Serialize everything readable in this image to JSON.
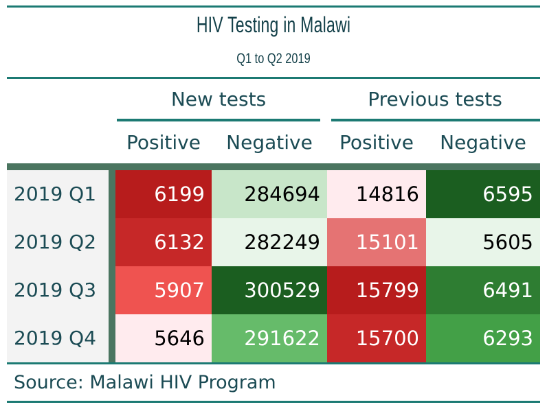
{
  "colors": {
    "rule": "#1c7a73",
    "header_band": "#4b7560",
    "stub_background": "#f3f3f3",
    "text": "#1b4b54",
    "positive_scale": [
      "#ffebee",
      "#e57373",
      "#f44336",
      "#d32f2f",
      "#b71c1c"
    ],
    "negative_scale": [
      "#e8f5e9",
      "#c8e6c9",
      "#66bb6a",
      "#43a047",
      "#2e7d32",
      "#1b5e20"
    ]
  },
  "chart_data": {
    "type": "table",
    "title": "HIV Testing in Malawi",
    "subtitle": "Q1 to Q2 2019",
    "column_groups": [
      {
        "label": "New tests",
        "columns": [
          "Positive",
          "Negative"
        ]
      },
      {
        "label": "Previous tests",
        "columns": [
          "Positive",
          "Negative"
        ]
      }
    ],
    "rows": [
      {
        "label": "2019 Q1",
        "values": [
          6199,
          284694,
          14816,
          6595
        ]
      },
      {
        "label": "2019 Q2",
        "values": [
          6132,
          282249,
          15101,
          5605
        ]
      },
      {
        "label": "2019 Q3",
        "values": [
          5907,
          300529,
          15799,
          6491
        ]
      },
      {
        "label": "2019 Q4",
        "values": [
          5646,
          291622,
          15700,
          6293
        ]
      }
    ],
    "cell_colors": [
      [
        {
          "bg": "#b71c1c",
          "fg": "#ffffff"
        },
        {
          "bg": "#c8e6c9",
          "fg": "#000000"
        },
        {
          "bg": "#ffebee",
          "fg": "#000000"
        },
        {
          "bg": "#1b5e20",
          "fg": "#ffffff"
        }
      ],
      [
        {
          "bg": "#c62828",
          "fg": "#ffffff"
        },
        {
          "bg": "#e8f5e9",
          "fg": "#000000"
        },
        {
          "bg": "#e57373",
          "fg": "#ffffff"
        },
        {
          "bg": "#e8f5e9",
          "fg": "#000000"
        }
      ],
      [
        {
          "bg": "#ef5350",
          "fg": "#ffffff"
        },
        {
          "bg": "#1b5e20",
          "fg": "#ffffff"
        },
        {
          "bg": "#b71c1c",
          "fg": "#ffffff"
        },
        {
          "bg": "#2e7d32",
          "fg": "#ffffff"
        }
      ],
      [
        {
          "bg": "#ffebee",
          "fg": "#000000"
        },
        {
          "bg": "#66bb6a",
          "fg": "#ffffff"
        },
        {
          "bg": "#c62828",
          "fg": "#ffffff"
        },
        {
          "bg": "#43a047",
          "fg": "#ffffff"
        }
      ]
    ],
    "source_note": "Source: Malawi HIV Program"
  }
}
